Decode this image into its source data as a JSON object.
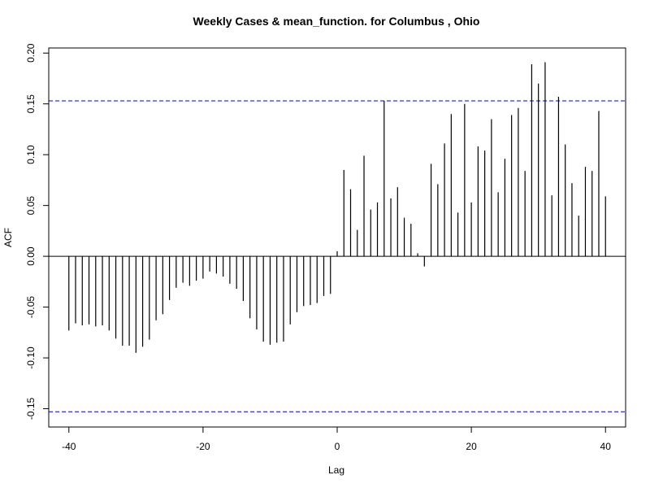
{
  "chart_data": {
    "type": "bar",
    "title": "Weekly Cases & mean_function. for Columbus , Ohio",
    "xlabel": "Lag",
    "ylabel": "ACF",
    "xlim": [
      -43,
      43
    ],
    "ylim": [
      -0.168,
      0.205
    ],
    "x_ticks": [
      -40,
      -20,
      0,
      20,
      40
    ],
    "x_tick_labels": [
      "-40",
      "-20",
      "0",
      "20",
      "40"
    ],
    "y_ticks": [
      -0.15,
      -0.1,
      -0.05,
      0.0,
      0.05,
      0.1,
      0.15,
      0.2
    ],
    "y_tick_labels": [
      "-0.15",
      "-0.10",
      "-0.05",
      "0.00",
      "0.05",
      "0.10",
      "0.15",
      "0.20"
    ],
    "confidence_bound": 0.153,
    "grid": false,
    "colors": {
      "bars": "#000000",
      "confidence_lines": "#0000cc",
      "zero_line": "#000000"
    },
    "series": [
      {
        "lags": [
          -40,
          -39,
          -38,
          -37,
          -36,
          -35,
          -34,
          -33,
          -32,
          -31,
          -30,
          -29,
          -28,
          -27,
          -26,
          -25,
          -24,
          -23,
          -22,
          -21,
          -20,
          -19,
          -18,
          -17,
          -16,
          -15,
          -14,
          -13,
          -12,
          -11,
          -10,
          -9,
          -8,
          -7,
          -6,
          -5,
          -4,
          -3,
          -2,
          -1,
          0,
          1,
          2,
          3,
          4,
          5,
          6,
          7,
          8,
          9,
          10,
          11,
          12,
          13,
          14,
          15,
          16,
          17,
          18,
          19,
          20,
          21,
          22,
          23,
          24,
          25,
          26,
          27,
          28,
          29,
          30,
          31,
          32,
          33,
          34,
          35,
          36,
          37,
          38,
          39,
          40
        ],
        "values": [
          -0.073,
          -0.066,
          -0.068,
          -0.067,
          -0.069,
          -0.068,
          -0.073,
          -0.081,
          -0.088,
          -0.088,
          -0.095,
          -0.089,
          -0.082,
          -0.063,
          -0.057,
          -0.043,
          -0.031,
          -0.026,
          -0.029,
          -0.024,
          -0.022,
          -0.015,
          -0.017,
          -0.02,
          -0.027,
          -0.032,
          -0.044,
          -0.061,
          -0.072,
          -0.084,
          -0.087,
          -0.085,
          -0.084,
          -0.067,
          -0.055,
          -0.049,
          -0.048,
          -0.046,
          -0.039,
          -0.037,
          0.005,
          0.085,
          0.066,
          0.026,
          0.099,
          0.046,
          0.053,
          0.153,
          0.057,
          0.068,
          0.038,
          0.032,
          0.003,
          -0.01,
          0.091,
          0.071,
          0.111,
          0.14,
          0.043,
          0.15,
          0.053,
          0.108,
          0.104,
          0.135,
          0.063,
          0.096,
          0.139,
          0.146,
          0.084,
          0.189,
          0.17,
          0.191,
          0.06,
          0.157,
          0.11,
          0.072,
          0.04,
          0.088,
          0.084,
          0.143,
          0.059
        ]
      }
    ]
  }
}
